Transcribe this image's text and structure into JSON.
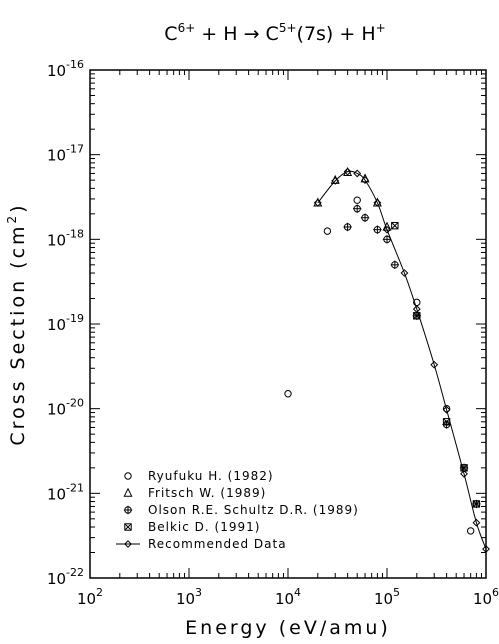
{
  "chart_data": {
    "type": "scatter",
    "title": {
      "prefix": "C",
      "prefix_sup": "6+",
      "middle": " + H → C",
      "middle_sup": "5+",
      "suffix": "(7s) + H",
      "suffix_sup": "+"
    },
    "xlabel": "Energy (eV/amu)",
    "ylabel": {
      "main": "Cross Section (cm",
      "sup": "2",
      "end": ")"
    },
    "x_scale": "log",
    "y_scale": "log",
    "xlim": [
      100,
      1000000
    ],
    "ylim": [
      1e-22,
      1e-16
    ],
    "x_ticks": [
      {
        "value": 100,
        "base": "10",
        "exp": "2"
      },
      {
        "value": 1000,
        "base": "10",
        "exp": "3"
      },
      {
        "value": 10000,
        "base": "10",
        "exp": "4"
      },
      {
        "value": 100000,
        "base": "10",
        "exp": "5"
      },
      {
        "value": 1000000,
        "base": "10",
        "exp": "6"
      }
    ],
    "y_ticks": [
      {
        "value": 1e-16,
        "base": "10",
        "exp": "-16"
      },
      {
        "value": 1e-17,
        "base": "10",
        "exp": "-17"
      },
      {
        "value": 1e-18,
        "base": "10",
        "exp": "-18"
      },
      {
        "value": 1e-19,
        "base": "10",
        "exp": "-19"
      },
      {
        "value": 1e-20,
        "base": "10",
        "exp": "-20"
      },
      {
        "value": 1e-21,
        "base": "10",
        "exp": "-21"
      },
      {
        "value": 1e-22,
        "base": "10",
        "exp": "-22"
      }
    ],
    "grid": false,
    "legend_position": "bottom-left",
    "series": [
      {
        "name": "Ryufuku H. (1982)",
        "marker": "circle",
        "points": [
          [
            10000,
            1.5e-20
          ],
          [
            25000,
            1.25e-18
          ],
          [
            50000,
            2.9e-18
          ],
          [
            200000,
            1.8e-19
          ],
          [
            400000,
            1e-20
          ],
          [
            700000,
            3.6e-22
          ]
        ]
      },
      {
        "name": "Fritsch W. (1989)",
        "marker": "triangle",
        "points": [
          [
            20000,
            2.7e-18
          ],
          [
            30000,
            5e-18
          ],
          [
            40000,
            6.2e-18
          ],
          [
            60000,
            5.2e-18
          ],
          [
            80000,
            2.7e-18
          ],
          [
            100000,
            1.4e-18
          ]
        ]
      },
      {
        "name": "Olson R.E. Schultz D.R. (1989)",
        "marker": "circle-plus",
        "points": [
          [
            40000,
            1.4e-18
          ],
          [
            50000,
            2.3e-18
          ],
          [
            60000,
            1.8e-18
          ],
          [
            80000,
            1.3e-18
          ],
          [
            100000,
            1e-18
          ],
          [
            120000,
            5e-19
          ],
          [
            200000,
            1.25e-19
          ],
          [
            400000,
            6.5e-21
          ],
          [
            600000,
            2e-21
          ],
          [
            800000,
            7.5e-22
          ]
        ]
      },
      {
        "name": "Belkic D. (1991)",
        "marker": "x-box",
        "points": [
          [
            120000,
            1.45e-18
          ],
          [
            200000,
            1.25e-19
          ],
          [
            400000,
            7e-21
          ],
          [
            600000,
            2e-21
          ],
          [
            800000,
            7.5e-22
          ]
        ]
      },
      {
        "name": "Recommended Data",
        "marker": "diamond",
        "line": true,
        "points": [
          [
            20000,
            2.7e-18
          ],
          [
            30000,
            4.9e-18
          ],
          [
            40000,
            6.3e-18
          ],
          [
            50000,
            6e-18
          ],
          [
            60000,
            5e-18
          ],
          [
            80000,
            2.7e-18
          ],
          [
            100000,
            1.3e-18
          ],
          [
            150000,
            4e-19
          ],
          [
            200000,
            1.5e-19
          ],
          [
            300000,
            3.3e-20
          ],
          [
            400000,
            9.7e-21
          ],
          [
            600000,
            1.7e-21
          ],
          [
            800000,
            4.5e-22
          ],
          [
            1000000,
            2.2e-22
          ]
        ]
      }
    ]
  }
}
